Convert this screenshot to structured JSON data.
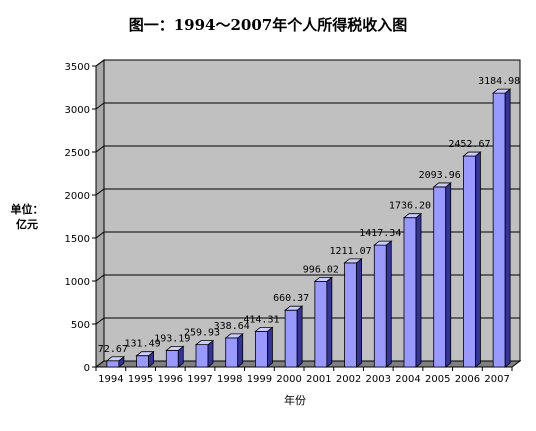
{
  "title": "图一：1994～2007年个人所得税收入图",
  "chart_data": {
    "type": "bar",
    "title": "图一：1994～2007年个人所得税收入图",
    "ylabel": "单位：亿元",
    "xlabel": "年份",
    "ylim": [
      0,
      3500
    ],
    "yticks": [
      0,
      500,
      1000,
      1500,
      2000,
      2500,
      3000,
      3500
    ],
    "grid": true,
    "categories": [
      "1994",
      "1995",
      "1996",
      "1997",
      "1998",
      "1999",
      "2000",
      "2001",
      "2002",
      "2003",
      "2004",
      "2005",
      "2006",
      "2007"
    ],
    "values": [
      72.67,
      131.49,
      193.19,
      259.93,
      338.64,
      414.31,
      660.37,
      996.02,
      1211.07,
      1417.34,
      1736.2,
      2093.96,
      2452.67,
      3184.98
    ],
    "value_labels": [
      "72.67",
      "131.49",
      "193.19",
      "259.93",
      "338.64",
      "414.31",
      "660.37",
      "996.02",
      "1211.07",
      "1417.34",
      "1736.20",
      "2093.96",
      "2452.67",
      "3184.98"
    ],
    "colors": {
      "bar_front": "#9999ff",
      "bar_side": "#333399",
      "bar_top": "#ccccff",
      "wall": "#c0c0c0",
      "floor": "#808080",
      "grid": "#000000"
    }
  }
}
